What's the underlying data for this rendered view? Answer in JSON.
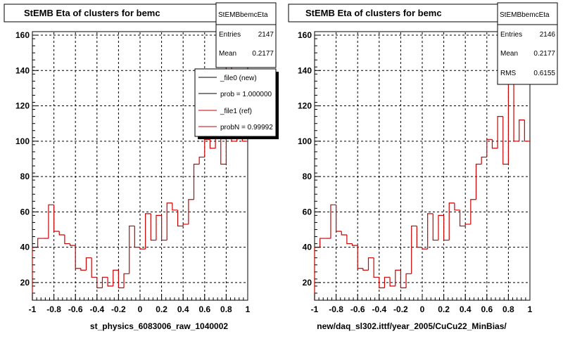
{
  "chart_data": [
    {
      "type": "histogram",
      "title": "StEMB Eta of clusters for bemc",
      "xlabel": "st_physics_6083006_raw_1040002",
      "xlim": [
        -1,
        1
      ],
      "ylim": [
        10,
        162
      ],
      "grid": true,
      "x_ticks": [
        "-1",
        "-0.8",
        "-0.6",
        "-0.4",
        "-0.2",
        "0",
        "0.2",
        "0.4",
        "0.6",
        "0.8",
        "1"
      ],
      "y_ticks": [
        "20",
        "40",
        "60",
        "80",
        "100",
        "120",
        "140",
        "160"
      ],
      "bin_edges_from": -1,
      "bin_width": 0.05,
      "series": [
        {
          "name": "_file1 (ref)",
          "color": "#cc0000",
          "values": [
            40,
            45,
            45,
            64,
            49,
            47,
            42,
            41,
            28,
            27,
            34,
            23,
            17,
            23,
            18,
            27,
            17,
            25,
            52,
            40,
            39,
            59,
            44,
            58,
            44,
            65,
            61,
            52,
            53,
            67,
            87,
            91,
            101,
            96,
            114,
            87,
            154,
            100,
            112,
            100
          ]
        }
      ],
      "stats": {
        "name": "StEMBbemcEta",
        "rows": [
          {
            "label": "Entries",
            "value": "2147"
          },
          {
            "label": "Mean",
            "value": "0.2177"
          }
        ]
      },
      "legend": {
        "position": "top-right",
        "entries": [
          {
            "label": "_file0 (new)",
            "color": "#000000"
          },
          {
            "label": "prob = 1.000000",
            "color": "#000000"
          },
          {
            "label": "_file1 (ref)",
            "color": "#cc0000"
          },
          {
            "label": "probN = 0.99992",
            "color": "#cc0000"
          }
        ]
      }
    },
    {
      "type": "histogram",
      "title": "StEMB Eta of clusters for bemc",
      "xlabel": "new/daq_sl302.ittf/year_2005/CuCu22_MinBias/",
      "xlim": [
        -1,
        1
      ],
      "ylim": [
        10,
        162
      ],
      "grid": true,
      "x_ticks": [
        "-1",
        "-0.8",
        "-0.6",
        "-0.4",
        "-0.2",
        "0",
        "0.2",
        "0.4",
        "0.6",
        "0.8",
        "1"
      ],
      "y_ticks": [
        "20",
        "40",
        "60",
        "80",
        "100",
        "120",
        "140",
        "160"
      ],
      "bin_edges_from": -1,
      "bin_width": 0.05,
      "series": [
        {
          "name": "",
          "color": "#cc0000",
          "values": [
            40,
            45,
            45,
            64,
            49,
            47,
            42,
            41,
            28,
            27,
            34,
            23,
            17,
            23,
            18,
            27,
            17,
            25,
            52,
            40,
            39,
            59,
            44,
            58,
            44,
            65,
            61,
            52,
            53,
            67,
            87,
            91,
            101,
            96,
            114,
            87,
            154,
            100,
            112,
            100
          ]
        }
      ],
      "stats": {
        "name": "StEMBbemcEta",
        "rows": [
          {
            "label": "Entries",
            "value": "2146"
          },
          {
            "label": "Mean",
            "value": "0.2177"
          },
          {
            "label": "RMS",
            "value": "0.6155"
          }
        ]
      }
    }
  ]
}
